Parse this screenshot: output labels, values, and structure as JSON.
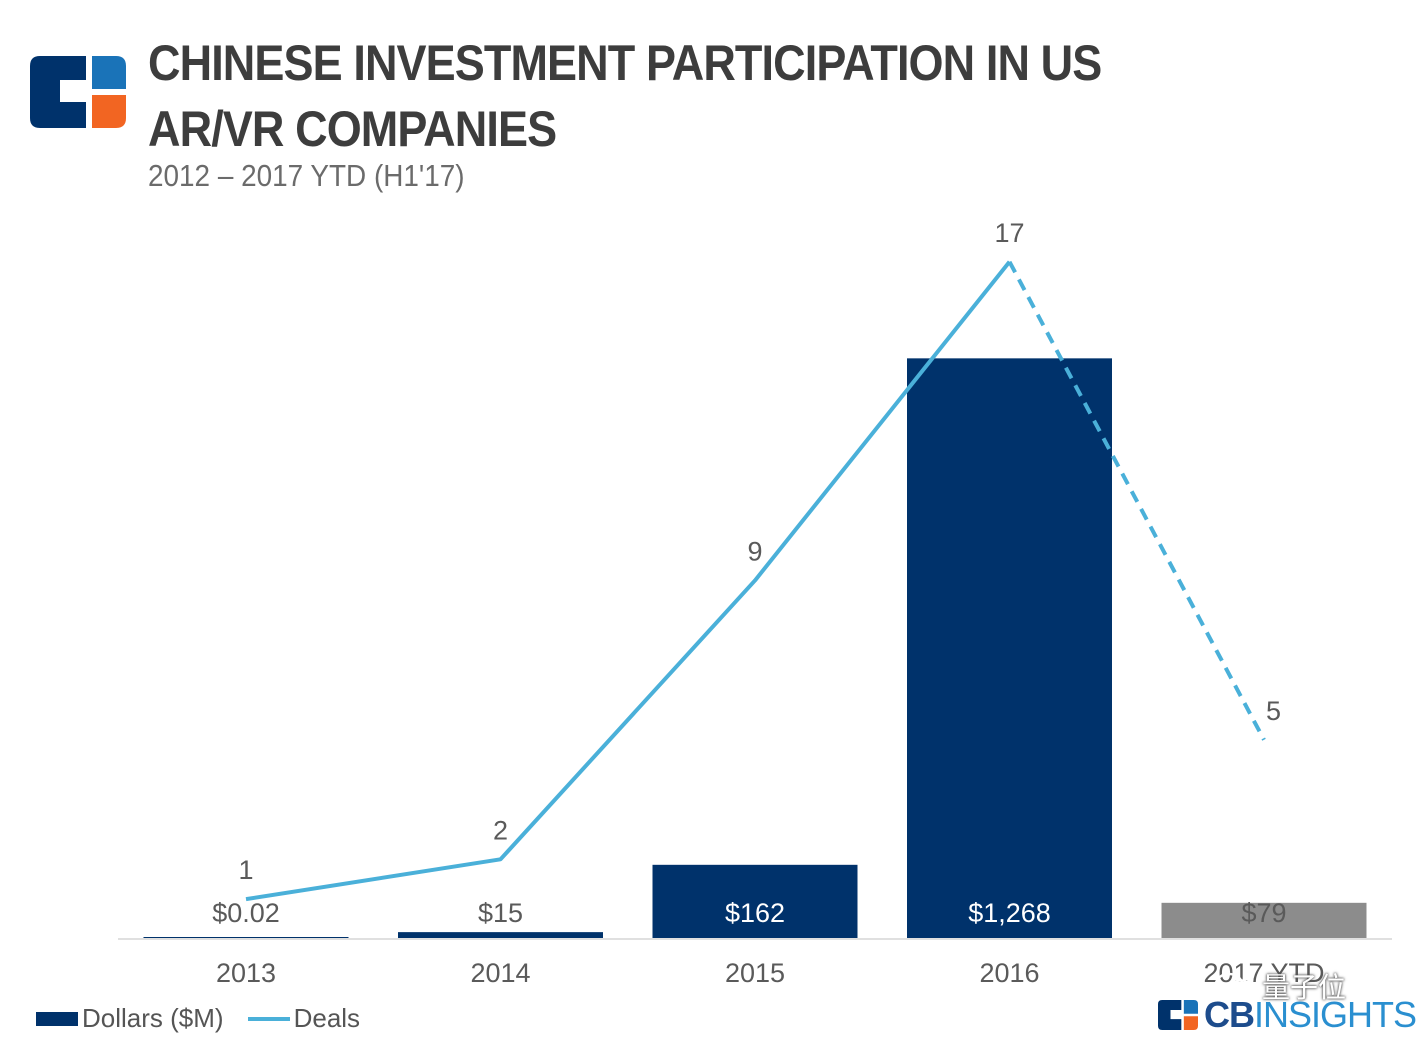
{
  "header": {
    "title_line1": "CHINESE INVESTMENT PARTICIPATION IN US",
    "title_line2": "AR/VR COMPANIES",
    "subtitle": "2012 – 2017 YTD (H1'17)"
  },
  "colors": {
    "bar_primary": "#00326b",
    "bar_ytd": "#8c8c8c",
    "line": "#4ab0d9",
    "logo_blue": "#00326b",
    "logo_light": "#1a73b8",
    "logo_orange": "#f26522"
  },
  "chart_data": {
    "type": "bar",
    "categories": [
      "2013",
      "2014",
      "2015",
      "2016",
      "2017 YTD"
    ],
    "series": [
      {
        "name": "Dollars ($M)",
        "type": "bar",
        "values": [
          0.02,
          15,
          162,
          1268,
          79
        ],
        "labels": [
          "$0.02",
          "$15",
          "$162",
          "$1,268",
          "$79"
        ]
      },
      {
        "name": "Deals",
        "type": "line",
        "values": [
          1,
          2,
          9,
          17,
          5
        ],
        "labels": [
          "1",
          "2",
          "9",
          "17",
          "5"
        ],
        "dashed_last_segment": true
      }
    ],
    "title": "CHINESE INVESTMENT PARTICIPATION IN US AR/VR COMPANIES",
    "subtitle": "2012 – 2017 YTD (H1'17)",
    "ylim_bars": [
      0,
      1450
    ],
    "ylim_deals": [
      0,
      18.5
    ],
    "legend_position": "bottom-left",
    "grid": false
  },
  "legend": {
    "bar_label": "Dollars ($M)",
    "line_label": "Deals"
  },
  "brand": {
    "cb": "CB",
    "insights": "INSIGHTS"
  },
  "watermark": {
    "text": "量子位"
  }
}
